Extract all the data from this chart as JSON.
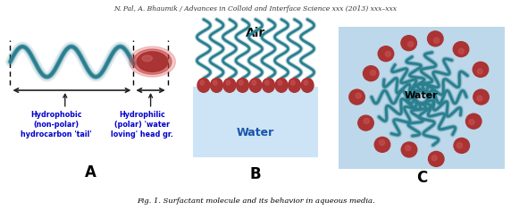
{
  "header_text": "N. Pal, A. Bhaumik / Advances in Colloid and Interface Science xxx (2013) xxx–xxx",
  "caption_text": "Fig. 1. Surfactant molecule and its behavior in aqueous media.",
  "label_A": "A",
  "label_B": "B",
  "label_C": "C",
  "text_air": "Air",
  "text_water_B": "Water",
  "text_water_C": "Water",
  "text_hydrophobic": "Hydrophobic\n(non-polar)\nhydrocarbon 'tail'",
  "text_hydrophilic": "Hydrophilic\n(polar) 'water\nloving' head gr.",
  "teal_color": "#2a7f8f",
  "red_color": "#aa3333",
  "water_color": "#cce4f5",
  "bg_color_C": "#bdd8ea",
  "label_color": "#1a1aaa",
  "background": "#ffffff",
  "arrow_color": "#222222",
  "text_color_hydro": "#0000cc"
}
